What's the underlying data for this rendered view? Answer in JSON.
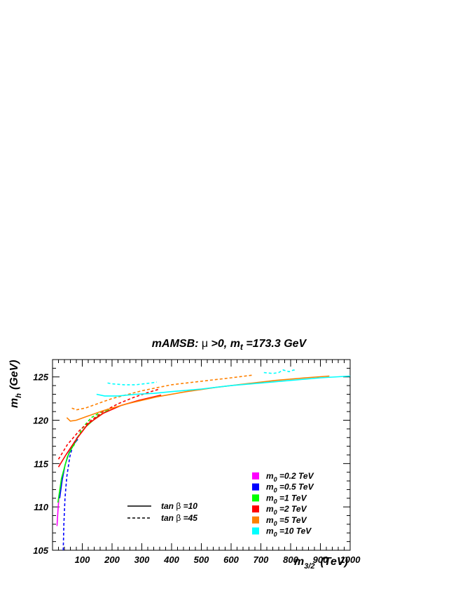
{
  "chart_data": {
    "type": "line",
    "title": {
      "prefix": "mAMSB: ",
      "mu": "μ",
      "mid": " >0, m",
      "sub": "t",
      "suffix": " =173.3 GeV"
    },
    "xlabel": {
      "main": "m",
      "sub": "3/2",
      "units": "(TeV)"
    },
    "ylabel": {
      "main": "m",
      "sub": "h",
      "units": "(GeV)"
    },
    "xlim": [
      0,
      1000
    ],
    "ylim": [
      105,
      127
    ],
    "xticks": [
      100,
      200,
      300,
      400,
      500,
      600,
      700,
      800,
      900,
      1000
    ],
    "yticks": [
      105,
      110,
      115,
      120,
      125
    ],
    "style_legend": [
      {
        "dash": "solid",
        "label_main": "tan ",
        "label_greek": "β",
        "label_rest": " =10"
      },
      {
        "dash": "dashed",
        "label_main": "tan ",
        "label_greek": "β",
        "label_rest": " =45"
      }
    ],
    "series": [
      {
        "name": "m0 =0.2 TeV",
        "label_main": "m",
        "label_sub": "0",
        "label_rest": " =0.2 TeV",
        "color": "#ff00ff",
        "solid": [
          [
            15,
            107.8
          ],
          [
            18,
            109.5
          ],
          [
            22,
            111.3
          ]
        ],
        "dashed": []
      },
      {
        "name": "m0 =0.5 TeV",
        "label_main": "m",
        "label_sub": "0",
        "label_rest": " =0.5 TeV",
        "color": "#0000ff",
        "solid": [
          [
            24,
            111
          ],
          [
            32,
            113
          ],
          [
            42,
            114.8
          ],
          [
            55,
            116.2
          ],
          [
            70,
            117.2
          ],
          [
            85,
            117.8
          ]
        ],
        "dashed": [
          [
            36,
            105
          ],
          [
            38,
            108
          ],
          [
            42,
            111
          ],
          [
            48,
            113.5
          ],
          [
            58,
            115.8
          ],
          [
            70,
            117.3
          ],
          [
            85,
            118.1
          ]
        ]
      },
      {
        "name": "m0 =1 TeV",
        "label_main": "m",
        "label_sub": "0",
        "label_rest": " =1 TeV",
        "color": "#00ff00",
        "solid": [
          [
            18,
            110.5
          ],
          [
            30,
            113.3
          ],
          [
            50,
            115.8
          ],
          [
            80,
            117.8
          ],
          [
            110,
            119.2
          ],
          [
            150,
            120.4
          ],
          [
            190,
            121.2
          ]
        ],
        "dashed": [
          [
            70,
            117
          ],
          [
            100,
            119.1
          ],
          [
            130,
            120.3
          ],
          [
            160,
            120.9
          ],
          [
            190,
            121.3
          ]
        ]
      },
      {
        "name": "m0 =2 TeV",
        "label_main": "m",
        "label_sub": "0",
        "label_rest": " =2 TeV",
        "color": "#ff0000",
        "solid": [
          [
            20,
            114.6
          ],
          [
            45,
            116
          ],
          [
            80,
            117.8
          ],
          [
            120,
            119.6
          ],
          [
            170,
            120.8
          ],
          [
            230,
            121.7
          ],
          [
            290,
            122.3
          ],
          [
            340,
            122.7
          ],
          [
            365,
            122.9
          ]
        ],
        "dashed": [
          [
            20,
            115.5
          ],
          [
            50,
            117.2
          ],
          [
            90,
            118.8
          ],
          [
            130,
            120
          ],
          [
            170,
            121
          ],
          [
            220,
            121.9
          ],
          [
            270,
            122.6
          ],
          [
            320,
            123.2
          ],
          [
            360,
            123.6
          ]
        ]
      },
      {
        "name": "m0 =5 TeV",
        "label_main": "m",
        "label_sub": "0",
        "label_rest": " =5 TeV",
        "color": "#ff8000",
        "solid": [
          [
            48,
            120.3
          ],
          [
            60,
            119.9
          ],
          [
            80,
            120
          ],
          [
            120,
            120.5
          ],
          [
            170,
            121.1
          ],
          [
            250,
            121.9
          ],
          [
            350,
            122.7
          ],
          [
            450,
            123.3
          ],
          [
            550,
            123.8
          ],
          [
            650,
            124.2
          ],
          [
            750,
            124.6
          ],
          [
            850,
            124.9
          ],
          [
            930,
            125.1
          ]
        ],
        "dashed": [
          [
            65,
            121.4
          ],
          [
            80,
            121.2
          ],
          [
            110,
            121.4
          ],
          [
            150,
            121.9
          ],
          [
            200,
            122.5
          ],
          [
            300,
            123.4
          ],
          [
            400,
            124.1
          ],
          [
            500,
            124.5
          ],
          [
            600,
            124.9
          ],
          [
            670,
            125.2
          ]
        ]
      },
      {
        "name": "m0 =10 TeV",
        "label_main": "m",
        "label_sub": "0",
        "label_rest": " =10 TeV",
        "color": "#00ffff",
        "solid": [
          [
            148,
            123
          ],
          [
            175,
            122.8
          ],
          [
            220,
            122.8
          ],
          [
            280,
            123
          ],
          [
            340,
            123.1
          ],
          [
            400,
            123.3
          ],
          [
            500,
            123.6
          ],
          [
            600,
            124
          ],
          [
            700,
            124.3
          ],
          [
            800,
            124.6
          ],
          [
            900,
            124.9
          ],
          [
            1000,
            125.1
          ]
        ],
        "dashed_segments": [
          [
            [
              185,
              124.3
            ],
            [
              200,
              124.2
            ],
            [
              240,
              124.1
            ],
            [
              280,
              124.1
            ],
            [
              330,
              124.3
            ],
            [
              350,
              124.4
            ]
          ],
          [
            [
              710,
              125.5
            ],
            [
              740,
              125.4
            ],
            [
              760,
              125.5
            ],
            [
              775,
              125.8
            ],
            [
              795,
              125.6
            ],
            [
              810,
              125.8
            ],
            [
              820,
              125.7
            ]
          ]
        ]
      }
    ]
  }
}
